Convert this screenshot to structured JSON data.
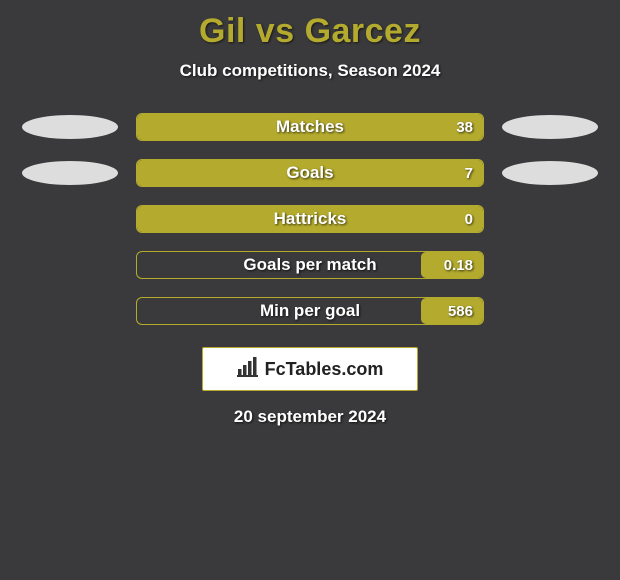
{
  "header": {
    "title": "Gil vs Garcez",
    "subtitle": "Club competitions, Season 2024",
    "title_color": "#b4ab2e",
    "subtitle_color": "#ffffff",
    "title_fontsize": 34,
    "subtitle_fontsize": 17
  },
  "chart": {
    "type": "horizontal-bar-comparison",
    "background_color": "#3a3a3c",
    "bar_track_width": 348,
    "bar_track_height": 28,
    "bar_border_color": "#b4ab2e",
    "bar_fill_color": "#b4ab2e",
    "bar_border_radius": 6,
    "label_color": "#ffffff",
    "label_fontsize": 17,
    "value_fontsize": 15,
    "side_ellipse_color": "#dddddd",
    "rows": [
      {
        "label": "Matches",
        "left_value": "",
        "right_value": "38",
        "fill_from": "left",
        "fill_pct": 100,
        "left_shape": true,
        "right_shape": true
      },
      {
        "label": "Goals",
        "left_value": "",
        "right_value": "7",
        "fill_from": "left",
        "fill_pct": 100,
        "left_shape": true,
        "right_shape": true
      },
      {
        "label": "Hattricks",
        "left_value": "",
        "right_value": "0",
        "fill_from": "left",
        "fill_pct": 100,
        "left_shape": false,
        "right_shape": false
      },
      {
        "label": "Goals per match",
        "left_value": "",
        "right_value": "0.18",
        "fill_from": "right",
        "fill_pct": 18,
        "left_shape": false,
        "right_shape": false
      },
      {
        "label": "Min per goal",
        "left_value": "",
        "right_value": "586",
        "fill_from": "right",
        "fill_pct": 18,
        "left_shape": false,
        "right_shape": false
      }
    ]
  },
  "branding": {
    "text": "FcTables.com",
    "background_color": "#ffffff",
    "border_color": "#b4ab2e",
    "text_color": "#222222",
    "icon_color": "#333333"
  },
  "footer": {
    "date": "20 september 2024",
    "color": "#ffffff",
    "fontsize": 17
  }
}
